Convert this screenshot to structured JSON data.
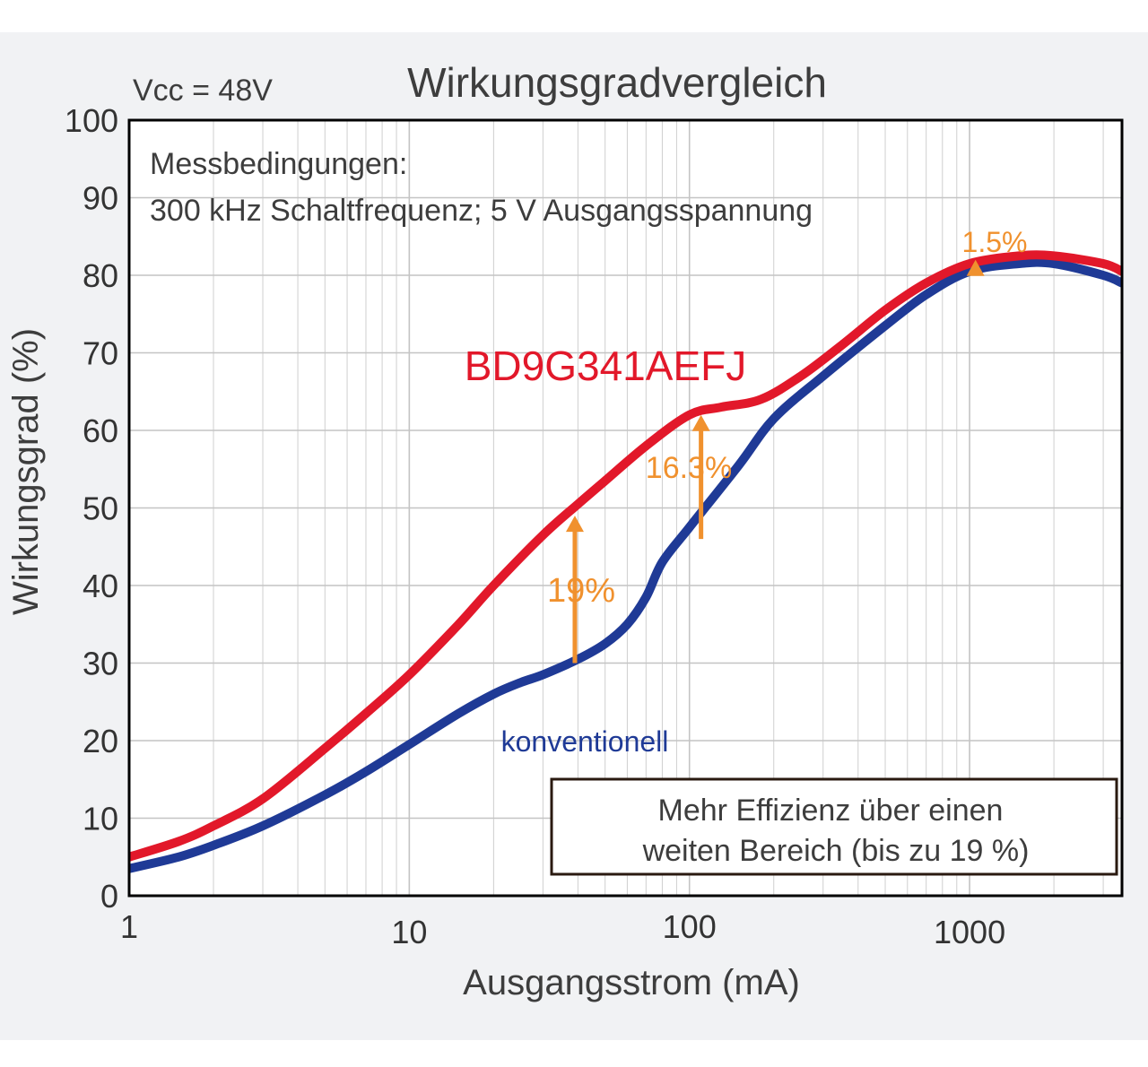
{
  "chart_data": {
    "type": "line",
    "title": "Wirkungsgradvergleich",
    "subtitle": "Vcc = 48V",
    "xlabel": "Ausgangsstrom (mA)",
    "ylabel": "Wirkungsgrad (%)",
    "xscale": "log",
    "xlim": [
      1,
      3500
    ],
    "ylim": [
      0,
      100
    ],
    "xticks": [
      "1",
      "10",
      "100",
      "1000"
    ],
    "yticks": [
      "0",
      "10",
      "20",
      "30",
      "40",
      "50",
      "60",
      "70",
      "80",
      "90",
      "100"
    ],
    "grid": true,
    "conditions": {
      "line1": "Messbedingungen:",
      "line2": "300 kHz Schaltfrequenz; 5 V Ausgangsspannung"
    },
    "series": [
      {
        "name": "BD9G341AEFJ",
        "color": "#e2182a",
        "x": [
          1,
          1.5,
          2,
          3,
          5,
          7,
          10,
          15,
          20,
          30,
          40,
          50,
          70,
          100,
          130,
          180,
          250,
          350,
          500,
          700,
          1000,
          1500,
          2000,
          3000,
          3500
        ],
        "y": [
          5,
          7,
          9,
          12.5,
          19,
          23.5,
          28.5,
          35,
          40,
          46.5,
          50.5,
          53.5,
          58,
          62,
          63,
          64,
          67,
          71,
          75.5,
          79,
          81.5,
          82.5,
          82.5,
          81.5,
          80.5
        ]
      },
      {
        "name": "konventionell",
        "color": "#1f3a96",
        "x": [
          1,
          1.5,
          2,
          3,
          5,
          7,
          10,
          15,
          20,
          25,
          30,
          40,
          50,
          60,
          70,
          80,
          100,
          150,
          200,
          300,
          500,
          700,
          1000,
          1500,
          2000,
          3000,
          3500
        ],
        "y": [
          3.5,
          5,
          6.5,
          9,
          13,
          16,
          19.5,
          23.5,
          26,
          27.5,
          28.5,
          30.5,
          32.5,
          35,
          38.5,
          43,
          47.5,
          55.5,
          61.5,
          67,
          73.5,
          77.5,
          80.5,
          81.5,
          81.5,
          80,
          79
        ]
      }
    ],
    "annotations": [
      {
        "label": "19%",
        "x": 39,
        "from": 30,
        "to": 49
      },
      {
        "label": "16.3%",
        "x": 110,
        "from": 46,
        "to": 62
      },
      {
        "label": "1.5%",
        "x": 1050,
        "from": 80.5,
        "to": 82
      }
    ],
    "note": {
      "line1": "Mehr Effizienz über einen",
      "line2": "weiten Bereich (bis zu 19 %)"
    },
    "colors": {
      "arrow": "#f0912e",
      "frame": "#000000",
      "note_border": "#2a1a10"
    }
  }
}
